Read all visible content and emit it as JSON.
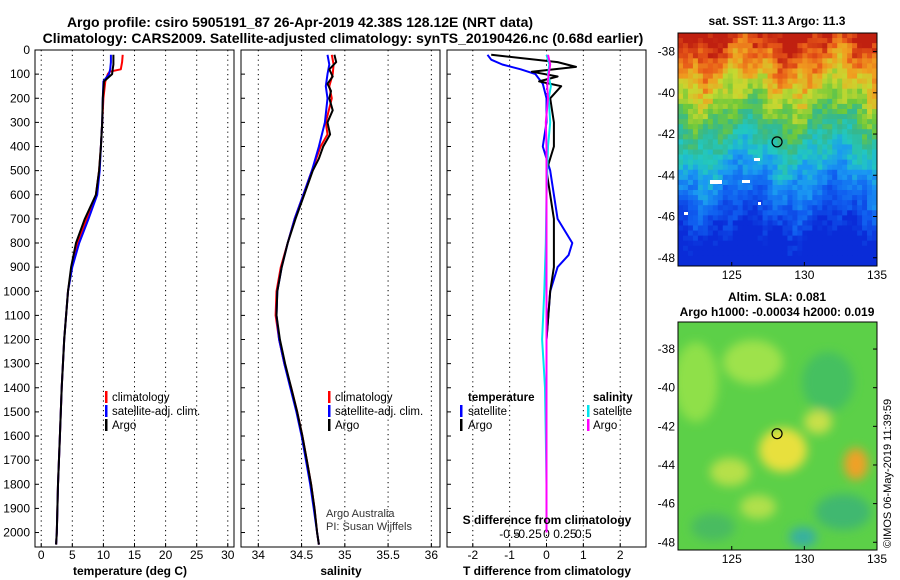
{
  "title": {
    "line1": "Argo profile: csiro 5905191_87 26-Apr-2019 42.38S 128.12E (NRT data)",
    "line2": "Climatology: CARS2009. Satellite-adjusted climatology: synTS_20190426.nc (0.68d earlier)"
  },
  "colors": {
    "climatology": "#ff0000",
    "satellite": "#0000ff",
    "argo": "#000000",
    "sat_salinity": "#00e5ee",
    "argo_salinity": "#ff00ff"
  },
  "depth_ticks": [
    "0",
    "100",
    "200",
    "300",
    "400",
    "500",
    "600",
    "700",
    "800",
    "900",
    "1000",
    "1100",
    "1200",
    "1300",
    "1400",
    "1500",
    "1600",
    "1700",
    "1800",
    "1900",
    "2000"
  ],
  "chart_data": [
    {
      "type": "line",
      "xlabel": "temperature (deg C)",
      "xlim": [
        -1,
        31
      ],
      "ylim": [
        2060,
        0
      ],
      "x_ticks": [
        "0",
        "5",
        "10",
        "15",
        "20",
        "25",
        "30"
      ],
      "legend": {
        "entries": [
          "climatology",
          "satellite-adj. clim.",
          "Argo"
        ]
      },
      "series": [
        {
          "name": "climatology",
          "color": "#ff0000",
          "depth": [
            20,
            50,
            80,
            90,
            100,
            130,
            200,
            300,
            400,
            500,
            600,
            700,
            800,
            900,
            1000,
            1200,
            1400,
            1600,
            1800,
            2000,
            2050
          ],
          "values": [
            13.1,
            13.0,
            12.8,
            11.0,
            10.7,
            10.3,
            10.0,
            9.8,
            9.6,
            9.3,
            8.8,
            7.3,
            5.9,
            4.9,
            4.3,
            3.7,
            3.3,
            3.0,
            2.7,
            2.5,
            2.4
          ]
        },
        {
          "name": "satellite-adj. clim.",
          "color": "#0000ff",
          "depth": [
            20,
            50,
            80,
            100,
            130,
            200,
            300,
            400,
            500,
            600,
            700,
            800,
            900,
            1000,
            1200,
            1400,
            1600,
            1800,
            2000,
            2050
          ],
          "values": [
            11.2,
            11.2,
            11.1,
            10.9,
            10.0,
            9.9,
            9.8,
            9.6,
            9.4,
            9.0,
            7.6,
            6.1,
            5.0,
            4.3,
            3.7,
            3.3,
            3.0,
            2.7,
            2.5,
            2.4
          ]
        },
        {
          "name": "Argo",
          "color": "#000000",
          "depth": [
            20,
            40,
            60,
            80,
            100,
            130,
            200,
            300,
            400,
            500,
            600,
            700,
            800,
            900,
            1000,
            1200,
            1400,
            1600,
            1800,
            2000,
            2050
          ],
          "values": [
            11.6,
            11.6,
            11.6,
            11.5,
            11.4,
            10.1,
            9.9,
            9.8,
            9.6,
            9.3,
            8.8,
            7.0,
            5.6,
            4.8,
            4.3,
            3.7,
            3.3,
            3.0,
            2.7,
            2.5,
            2.4
          ]
        }
      ]
    },
    {
      "type": "line",
      "xlabel": "salinity",
      "xlim": [
        33.8,
        36.1
      ],
      "ylim": [
        2060,
        0
      ],
      "x_ticks": [
        "34",
        "34.5",
        "35",
        "35.5",
        "36"
      ],
      "legend": {
        "entries": [
          "climatology",
          "satellite-adj. clim.",
          "Argo"
        ]
      },
      "annotation": {
        "line1": "Argo Australia",
        "line2": "PI: Susan Wijffels"
      },
      "series": [
        {
          "name": "climatology",
          "color": "#ff0000",
          "depth": [
            20,
            60,
            100,
            150,
            200,
            300,
            350,
            400,
            500,
            600,
            700,
            800,
            900,
            1000,
            1100,
            1200,
            1300,
            1400,
            1500,
            1600,
            1700,
            1800,
            1900,
            2000,
            2050
          ],
          "values": [
            34.85,
            34.87,
            34.86,
            34.82,
            34.85,
            34.78,
            34.8,
            34.72,
            34.62,
            34.52,
            34.42,
            34.34,
            34.26,
            34.21,
            34.2,
            34.24,
            34.3,
            34.38,
            34.45,
            34.51,
            34.56,
            34.61,
            34.65,
            34.68,
            34.7
          ]
        },
        {
          "name": "satellite-adj. clim.",
          "color": "#0000ff",
          "depth": [
            20,
            60,
            100,
            150,
            200,
            300,
            400,
            500,
            600,
            700,
            800,
            900,
            1000,
            1100,
            1200,
            1300,
            1400,
            1500,
            1600,
            1700,
            1800,
            1900,
            2000,
            2050
          ],
          "values": [
            34.8,
            34.82,
            34.8,
            34.78,
            34.8,
            34.77,
            34.7,
            34.62,
            34.52,
            34.42,
            34.34,
            34.27,
            34.22,
            34.21,
            34.24,
            34.3,
            34.37,
            34.44,
            34.5,
            34.55,
            34.6,
            34.64,
            34.68,
            34.7
          ]
        },
        {
          "name": "Argo",
          "color": "#000000",
          "depth": [
            20,
            50,
            80,
            110,
            140,
            170,
            200,
            250,
            300,
            350,
            400,
            450,
            500,
            600,
            700,
            800,
            900,
            1000,
            1100,
            1200,
            1300,
            1400,
            1500,
            1600,
            1700,
            1800,
            1900,
            2000,
            2050
          ],
          "values": [
            34.88,
            34.9,
            34.82,
            34.86,
            34.8,
            34.84,
            34.82,
            34.86,
            34.8,
            34.83,
            34.75,
            34.7,
            34.63,
            34.53,
            34.43,
            34.34,
            34.27,
            34.22,
            34.21,
            34.25,
            34.31,
            34.38,
            34.45,
            34.51,
            34.56,
            34.61,
            34.65,
            34.68,
            34.7
          ]
        }
      ]
    },
    {
      "type": "line",
      "xlabel": "T difference from climatology",
      "xlim": [
        -2.7,
        2.7
      ],
      "ylim": [
        2060,
        0
      ],
      "x_ticks": [
        "-2",
        "-1",
        "0",
        "1",
        "2"
      ],
      "secondary_axis": {
        "label": "S difference from climatology",
        "ticks": [
          "-0.5",
          "-0.25",
          "0",
          "0.25",
          "0.5"
        ]
      },
      "legend": {
        "temperature_heading": "temperature",
        "salinity_heading": "salinity",
        "entries": [
          "satellite",
          "Argo"
        ]
      },
      "series": [
        {
          "name": "satellite",
          "quantity": "temperature",
          "color": "#0000ff",
          "depth": [
            20,
            40,
            60,
            80,
            100,
            140,
            200,
            300,
            400,
            500,
            600,
            700,
            750,
            800,
            850,
            900,
            1000,
            1200,
            1400,
            1600,
            1800,
            2000
          ],
          "values": [
            -1.6,
            -1.5,
            -1.2,
            -0.7,
            -0.3,
            -0.1,
            0.0,
            0.0,
            -0.1,
            0.1,
            0.2,
            0.3,
            0.5,
            0.7,
            0.6,
            0.3,
            0.1,
            0.0,
            0.0,
            0.0,
            0.0,
            0.0
          ]
        },
        {
          "name": "Argo",
          "quantity": "temperature",
          "color": "#000000",
          "depth": [
            20,
            50,
            70,
            90,
            110,
            130,
            150,
            200,
            300,
            400,
            500,
            600,
            700,
            800,
            900,
            1000,
            1200,
            1400,
            1600,
            1800,
            2000
          ],
          "values": [
            -1.5,
            0.3,
            0.8,
            -0.4,
            0.3,
            -0.2,
            0.4,
            0.1,
            0.2,
            0.2,
            0.0,
            0.1,
            0.2,
            0.2,
            0.2,
            0.1,
            0.0,
            0.0,
            0.0,
            0.0,
            0.0
          ]
        },
        {
          "name": "satellite",
          "quantity": "salinity",
          "color": "#00e5ee",
          "depth": [
            20,
            60,
            100,
            150,
            200,
            300,
            400,
            600,
            800,
            1000,
            1200,
            1300,
            1400,
            1600,
            1800,
            2000
          ],
          "values": [
            0.0,
            0.04,
            0.02,
            0.06,
            0.03,
            0.05,
            0.02,
            0.0,
            -0.01,
            -0.03,
            -0.06,
            -0.04,
            -0.02,
            -0.01,
            0.0,
            0.0
          ]
        },
        {
          "name": "Argo",
          "quantity": "salinity",
          "color": "#ff00ff",
          "depth": [
            20,
            60,
            100,
            150,
            200,
            300,
            400,
            600,
            800,
            1000,
            1200,
            1400,
            1600,
            1800,
            2000
          ],
          "values": [
            0.02,
            0.05,
            0.03,
            0.01,
            0.02,
            -0.01,
            0.0,
            0.0,
            0.0,
            0.0,
            0.0,
            0.0,
            0.0,
            0.0,
            0.0
          ]
        }
      ]
    }
  ],
  "maps": [
    {
      "title": "sat. SST: 11.3 Argo: 11.3",
      "x_ticks": [
        "125",
        "130",
        "135"
      ],
      "y_ticks": [
        "-38",
        "-40",
        "-42",
        "-44",
        "-46",
        "-48"
      ],
      "field": "sst",
      "marker_lon": 128.12,
      "marker_lat": -42.38
    },
    {
      "title_line1": "Altim. SLA: 0.081",
      "title_line2": "Argo h1000: -0.00034 h2000: 0.019",
      "x_ticks": [
        "125",
        "130",
        "135"
      ],
      "y_ticks": [
        "-38",
        "-40",
        "-42",
        "-44",
        "-46",
        "-48"
      ],
      "field": "sla",
      "marker_lon": 128.12,
      "marker_lat": -42.38
    }
  ],
  "credit": "©IMOS 06-May-2019 11:39:59"
}
